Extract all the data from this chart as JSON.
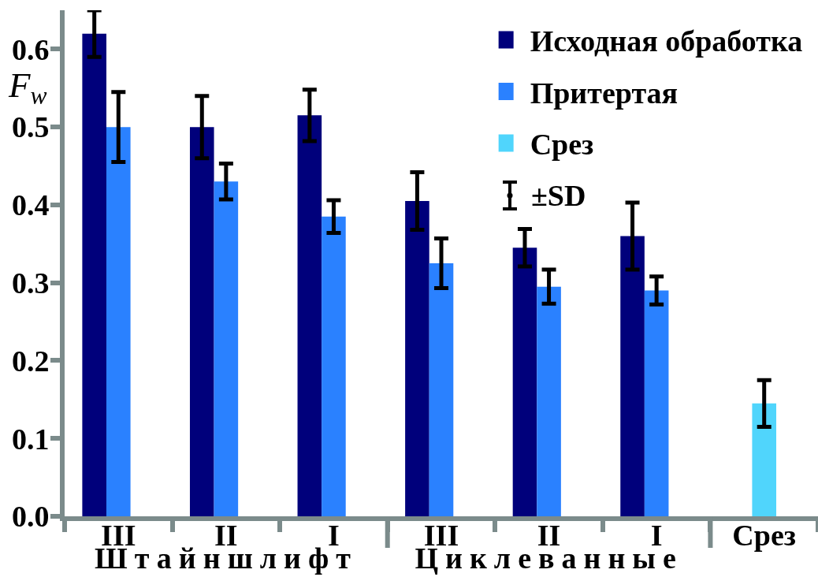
{
  "chart_data": {
    "type": "bar",
    "ylabel": "F$_{w}$",
    "categories": [
      "III",
      "II",
      "I",
      "III",
      "II",
      "I",
      "Срез"
    ],
    "series": [
      {
        "name": "Исходная обработка",
        "color": "#00007b",
        "values": [
          0.62,
          0.5,
          0.515,
          0.405,
          0.345,
          0.36,
          null
        ],
        "errors": [
          0.03,
          0.04,
          0.033,
          0.037,
          0.024,
          0.043,
          null
        ]
      },
      {
        "name": "Притертая",
        "color": "#2a81ff",
        "values": [
          0.5,
          0.43,
          0.385,
          0.325,
          0.295,
          0.29,
          null
        ],
        "errors": [
          0.045,
          0.023,
          0.021,
          0.032,
          0.022,
          0.018,
          null
        ]
      },
      {
        "name": "Срез",
        "color": "#50d5fc",
        "values": [
          null,
          null,
          null,
          null,
          null,
          null,
          0.145
        ],
        "errors": [
          null,
          null,
          null,
          null,
          null,
          null,
          0.03
        ]
      }
    ],
    "ylim": [
      0,
      0.65
    ],
    "yticks": [
      {
        "value": 0,
        "label": "0.0"
      },
      0.1,
      0.2,
      0.3,
      0.4,
      0.5,
      0.6
    ],
    "legend": "top right",
    "annotations": [
      "Штайншлифт",
      "Циклеванные",
      "±SD"
    ]
  }
}
